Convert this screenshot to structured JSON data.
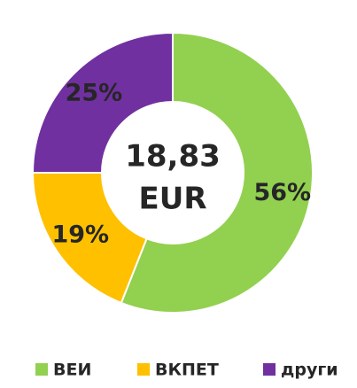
{
  "chart_data": {
    "type": "donut",
    "categories": [
      "ВЕИ",
      "ВКПЕТ",
      "други"
    ],
    "values": [
      56,
      19,
      25
    ],
    "value_labels": [
      "56%",
      "19%",
      "25%"
    ],
    "colors": [
      "#92d050",
      "#ffc000",
      "#7030a0"
    ],
    "center_text": [
      "18,83",
      "EUR"
    ],
    "legend": "bottom"
  }
}
